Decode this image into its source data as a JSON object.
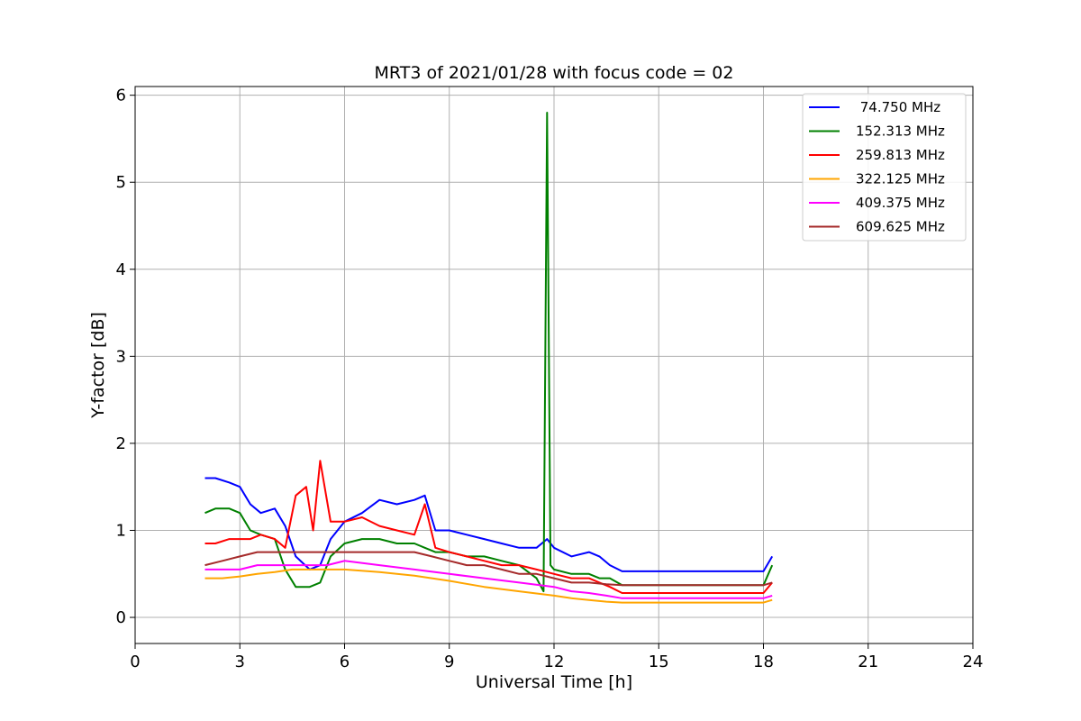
{
  "chart_data": {
    "type": "line",
    "title": "MRT3 of 2021/01/28 with focus code = 02",
    "xlabel": "Universal Time [h]",
    "ylabel": "Y-factor [dB]",
    "xlim": [
      0,
      24
    ],
    "ylim": [
      -0.3,
      6.1
    ],
    "xticks": [
      0,
      3,
      6,
      9,
      12,
      15,
      18,
      21,
      24
    ],
    "xtick_labels": [
      "0",
      "3",
      "6",
      "9",
      "12",
      "15",
      "18",
      "21",
      "24"
    ],
    "yticks": [
      0,
      1,
      2,
      3,
      4,
      5,
      6
    ],
    "ytick_labels": [
      "0",
      "1",
      "2",
      "3",
      "4",
      "5",
      "6"
    ],
    "grid": true,
    "legend_position": "top-right",
    "series": [
      {
        "name": " 74.750 MHz",
        "color": "#0000ff",
        "x": [
          2.0,
          2.3,
          2.7,
          3.0,
          3.3,
          3.6,
          4.0,
          4.3,
          4.6,
          5.0,
          5.3,
          5.6,
          6.0,
          6.5,
          7.0,
          7.5,
          8.0,
          8.3,
          8.6,
          9.0,
          9.5,
          10.0,
          10.5,
          11.0,
          11.5,
          11.8,
          12.0,
          12.5,
          13.0,
          13.3,
          13.6,
          13.95,
          18.0,
          18.25
        ],
        "values": [
          1.6,
          1.6,
          1.55,
          1.5,
          1.3,
          1.2,
          1.25,
          1.05,
          0.7,
          0.55,
          0.6,
          0.9,
          1.1,
          1.2,
          1.35,
          1.3,
          1.35,
          1.4,
          1.0,
          1.0,
          0.95,
          0.9,
          0.85,
          0.8,
          0.8,
          0.9,
          0.8,
          0.7,
          0.75,
          0.7,
          0.6,
          0.53,
          0.53,
          0.7
        ]
      },
      {
        "name": "152.313 MHz",
        "color": "#008000",
        "x": [
          2.0,
          2.3,
          2.7,
          3.0,
          3.3,
          3.6,
          4.0,
          4.3,
          4.6,
          5.0,
          5.3,
          5.6,
          6.0,
          6.5,
          7.0,
          7.5,
          8.0,
          8.3,
          8.6,
          9.0,
          9.5,
          10.0,
          10.5,
          11.0,
          11.5,
          11.7,
          11.8,
          11.9,
          12.0,
          12.5,
          13.0,
          13.3,
          13.6,
          13.95,
          18.0,
          18.25
        ],
        "values": [
          1.2,
          1.25,
          1.25,
          1.2,
          1.0,
          0.95,
          0.9,
          0.55,
          0.35,
          0.35,
          0.4,
          0.7,
          0.85,
          0.9,
          0.9,
          0.85,
          0.85,
          0.8,
          0.75,
          0.75,
          0.7,
          0.7,
          0.65,
          0.6,
          0.45,
          0.3,
          5.8,
          0.6,
          0.55,
          0.5,
          0.5,
          0.45,
          0.45,
          0.37,
          0.37,
          0.6
        ]
      },
      {
        "name": "259.813 MHz",
        "color": "#ff0000",
        "x": [
          2.0,
          2.3,
          2.7,
          3.0,
          3.3,
          3.6,
          4.0,
          4.3,
          4.6,
          4.9,
          5.1,
          5.3,
          5.6,
          6.0,
          6.5,
          7.0,
          7.5,
          8.0,
          8.3,
          8.6,
          9.0,
          9.5,
          10.0,
          10.5,
          11.0,
          11.5,
          12.0,
          12.5,
          13.0,
          13.3,
          13.6,
          13.95,
          18.0,
          18.25
        ],
        "values": [
          0.85,
          0.85,
          0.9,
          0.9,
          0.9,
          0.95,
          0.9,
          0.8,
          1.4,
          1.5,
          1.0,
          1.8,
          1.1,
          1.1,
          1.15,
          1.05,
          1.0,
          0.95,
          1.3,
          0.8,
          0.75,
          0.7,
          0.65,
          0.6,
          0.6,
          0.55,
          0.5,
          0.45,
          0.45,
          0.4,
          0.35,
          0.28,
          0.28,
          0.4
        ]
      },
      {
        "name": "322.125 MHz",
        "color": "#ffa500",
        "x": [
          2.0,
          2.5,
          3.0,
          3.5,
          4.0,
          4.5,
          5.0,
          5.5,
          6.0,
          7.0,
          8.0,
          9.0,
          10.0,
          11.0,
          12.0,
          12.5,
          13.0,
          13.5,
          13.95,
          18.0,
          18.25
        ],
        "values": [
          0.45,
          0.45,
          0.47,
          0.5,
          0.52,
          0.55,
          0.55,
          0.55,
          0.55,
          0.52,
          0.48,
          0.42,
          0.35,
          0.3,
          0.25,
          0.22,
          0.2,
          0.18,
          0.17,
          0.17,
          0.2
        ]
      },
      {
        "name": "409.375 MHz",
        "color": "#ff00ff",
        "x": [
          2.0,
          2.5,
          3.0,
          3.5,
          4.0,
          4.5,
          5.0,
          5.5,
          6.0,
          7.0,
          8.0,
          9.0,
          10.0,
          11.0,
          12.0,
          12.5,
          13.0,
          13.5,
          13.95,
          18.0,
          18.25
        ],
        "values": [
          0.55,
          0.55,
          0.55,
          0.6,
          0.6,
          0.6,
          0.6,
          0.6,
          0.65,
          0.6,
          0.55,
          0.5,
          0.45,
          0.4,
          0.35,
          0.3,
          0.28,
          0.25,
          0.22,
          0.22,
          0.25
        ]
      },
      {
        "name": "609.625 MHz",
        "color": "#a52a2a",
        "x": [
          2.0,
          2.5,
          3.0,
          3.5,
          4.0,
          4.5,
          5.0,
          5.5,
          6.0,
          6.5,
          7.0,
          7.5,
          8.0,
          8.5,
          9.0,
          9.5,
          10.0,
          10.5,
          11.0,
          11.5,
          12.0,
          12.5,
          13.0,
          13.5,
          13.95,
          18.0,
          18.25
        ],
        "values": [
          0.6,
          0.65,
          0.7,
          0.75,
          0.75,
          0.75,
          0.75,
          0.75,
          0.75,
          0.75,
          0.75,
          0.75,
          0.75,
          0.7,
          0.65,
          0.6,
          0.6,
          0.55,
          0.5,
          0.5,
          0.45,
          0.4,
          0.4,
          0.38,
          0.37,
          0.37,
          0.4
        ]
      }
    ]
  }
}
